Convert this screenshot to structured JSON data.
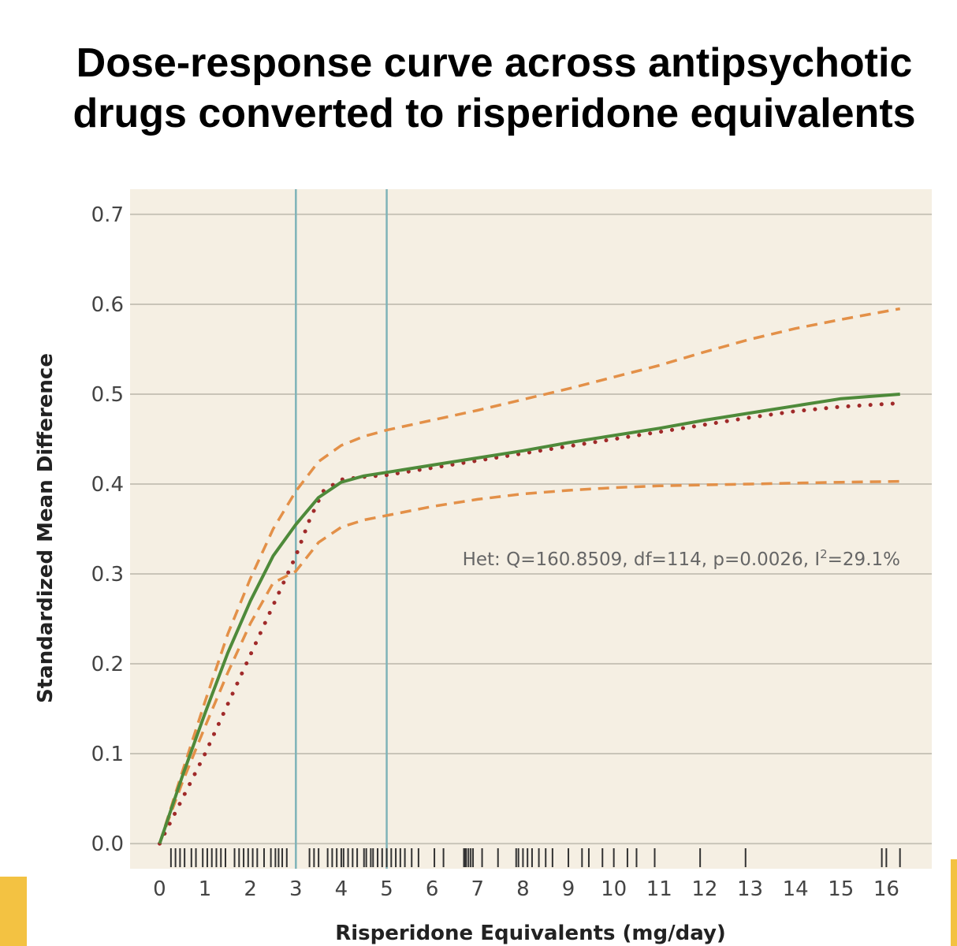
{
  "chart_data": {
    "type": "line",
    "title": "Dose-response curve across antipsychotic drugs converted to risperidone equivalents",
    "xlabel": "Risperidone Equivalents (mg/day)",
    "ylabel": "Standardized Mean Difference",
    "xlim": [
      -0.65,
      17.0
    ],
    "ylim": [
      -0.028,
      0.728
    ],
    "x_ticks": [
      0,
      1,
      2,
      3,
      4,
      5,
      6,
      7,
      8,
      9,
      10,
      11,
      12,
      13,
      14,
      15,
      16
    ],
    "y_ticks": [
      "0.0",
      "0.1",
      "0.2",
      "0.3",
      "0.4",
      "0.5",
      "0.6",
      "0.7"
    ],
    "grid": "horizontal",
    "background_color": "#f5efe3",
    "vertical_reference_lines": [
      3,
      5
    ],
    "annotation": {
      "text_prefix": "Het: Q=160.8509, df=114, p=0.0026, I",
      "superscript": "2",
      "text_suffix": "=29.1%"
    },
    "series": [
      {
        "role": "estimate",
        "style": "solid",
        "color": "#4e8a3a",
        "x": [
          0,
          0.5,
          1,
          1.5,
          2,
          2.5,
          3,
          3.5,
          4,
          4.5,
          5,
          6,
          7,
          8,
          9,
          10,
          11,
          12,
          13,
          14,
          15,
          16.3
        ],
        "y": [
          0.0,
          0.075,
          0.145,
          0.212,
          0.27,
          0.32,
          0.355,
          0.385,
          0.402,
          0.409,
          0.413,
          0.421,
          0.429,
          0.437,
          0.446,
          0.454,
          0.462,
          0.471,
          0.479,
          0.487,
          0.495,
          0.5
        ]
      },
      {
        "role": "upper-ci",
        "style": "dashed",
        "color": "#e39048",
        "x": [
          0,
          0.5,
          1,
          1.5,
          2,
          2.5,
          3,
          3.5,
          4,
          4.5,
          5,
          6,
          7,
          8,
          9,
          10,
          11,
          12,
          13,
          14,
          15,
          16.3
        ],
        "y": [
          0.0,
          0.08,
          0.158,
          0.233,
          0.295,
          0.35,
          0.392,
          0.425,
          0.443,
          0.453,
          0.46,
          0.471,
          0.482,
          0.494,
          0.506,
          0.519,
          0.532,
          0.547,
          0.561,
          0.573,
          0.583,
          0.595
        ]
      },
      {
        "role": "lower-ci",
        "style": "dashed",
        "color": "#e39048",
        "x": [
          0,
          0.5,
          1,
          1.5,
          2,
          2.5,
          3,
          3.5,
          4,
          4.5,
          5,
          6,
          7,
          8,
          9,
          10,
          11,
          12,
          13,
          14,
          15,
          16.3
        ],
        "y": [
          0.0,
          0.068,
          0.13,
          0.19,
          0.245,
          0.29,
          0.303,
          0.335,
          0.352,
          0.36,
          0.365,
          0.375,
          0.383,
          0.389,
          0.393,
          0.396,
          0.398,
          0.399,
          0.4,
          0.401,
          0.402,
          0.403
        ]
      },
      {
        "role": "spline",
        "style": "dotted",
        "color": "#a02a2a",
        "x": [
          0,
          0.5,
          1,
          1.5,
          2,
          2.5,
          3,
          3.3,
          3.6,
          4,
          4.5,
          5,
          6,
          7,
          8,
          9,
          10,
          11,
          12,
          13,
          14,
          15,
          16.3
        ],
        "y": [
          0.0,
          0.05,
          0.1,
          0.155,
          0.21,
          0.265,
          0.32,
          0.36,
          0.392,
          0.405,
          0.408,
          0.41,
          0.418,
          0.426,
          0.434,
          0.442,
          0.45,
          0.458,
          0.466,
          0.474,
          0.481,
          0.486,
          0.49
        ]
      }
    ],
    "rug_x": [
      0.25,
      0.35,
      0.45,
      0.55,
      0.7,
      0.8,
      0.95,
      1.05,
      1.15,
      1.25,
      1.35,
      1.45,
      1.65,
      1.75,
      1.85,
      1.95,
      2.05,
      2.15,
      2.3,
      2.45,
      2.55,
      2.62,
      2.7,
      2.8,
      3.3,
      3.4,
      3.5,
      3.7,
      3.8,
      3.9,
      4.0,
      4.05,
      4.15,
      4.25,
      4.35,
      4.5,
      4.55,
      4.65,
      4.7,
      4.8,
      4.9,
      5.0,
      5.1,
      5.2,
      5.3,
      5.4,
      5.55,
      5.7,
      6.05,
      6.25,
      6.7,
      6.72,
      6.75,
      6.8,
      6.85,
      6.9,
      7.1,
      7.45,
      7.85,
      7.9,
      8.0,
      8.1,
      8.2,
      8.35,
      8.5,
      8.65,
      9.0,
      9.3,
      9.45,
      9.75,
      10.0,
      10.3,
      10.5,
      10.9,
      11.9,
      12.9,
      15.9,
      16.0,
      16.3
    ]
  }
}
